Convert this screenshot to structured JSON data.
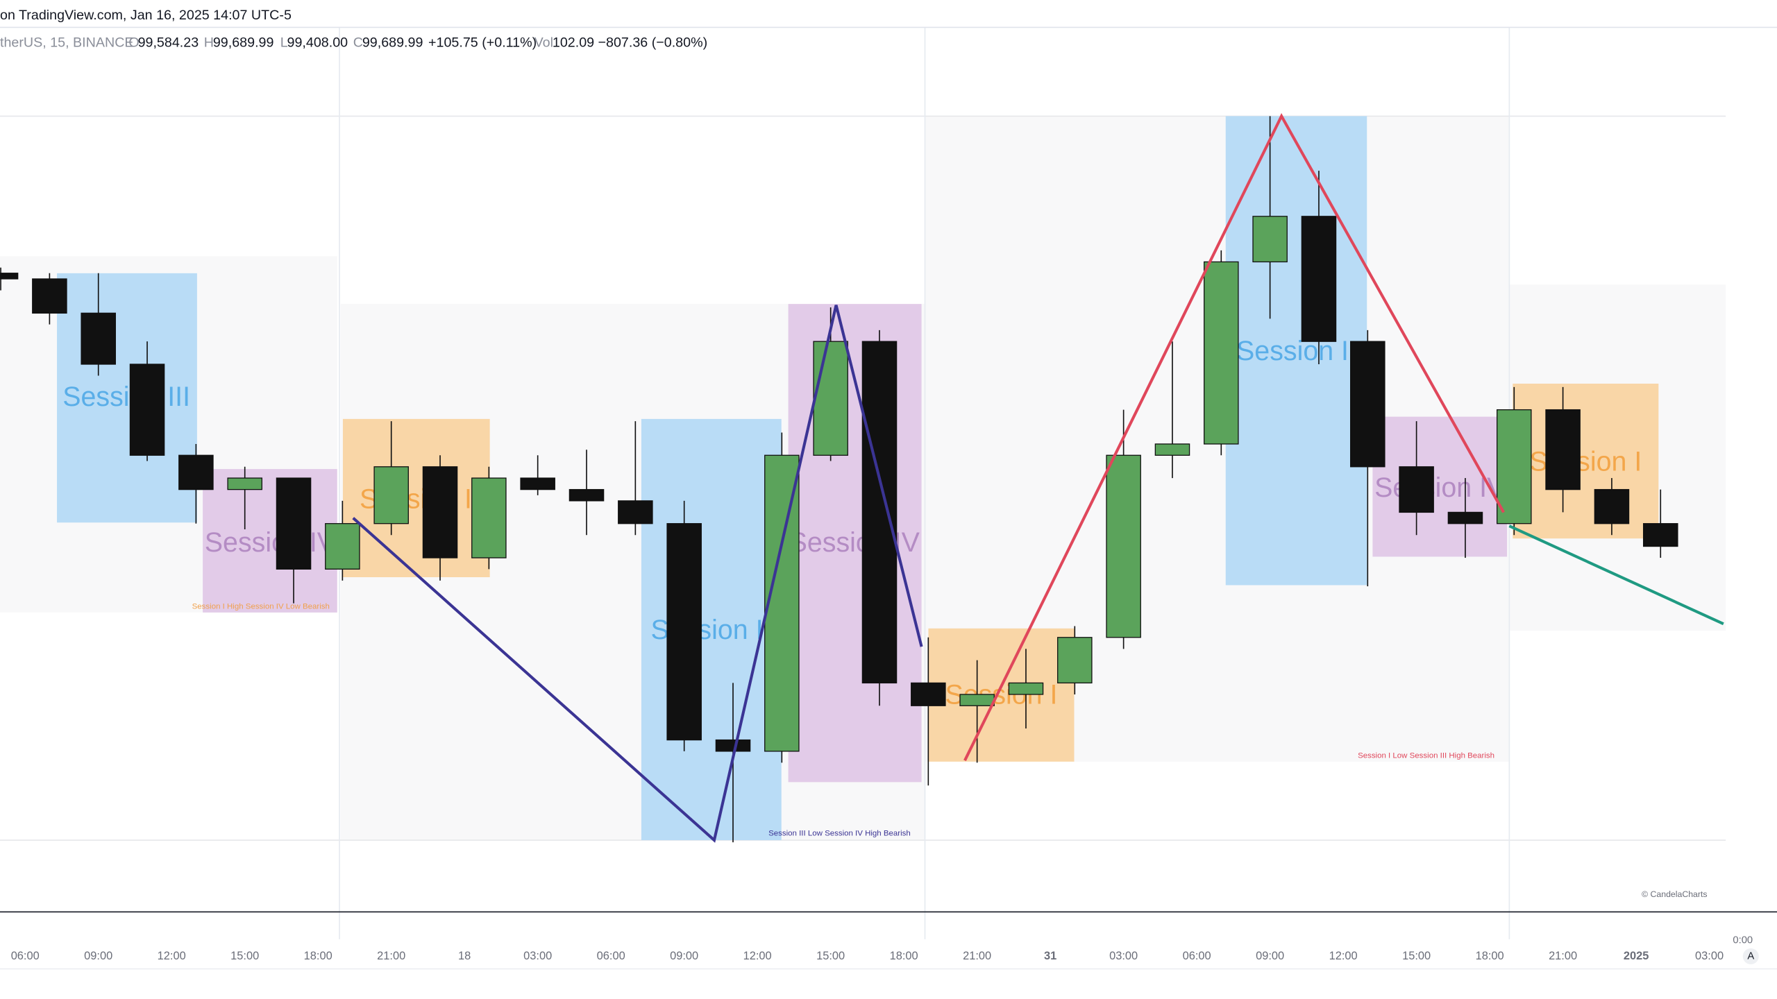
{
  "header": {
    "source": "on TradingView.com, Jan 16, 2025 14:07 UTC-5",
    "symbol": "therUS, 15, BINANCE",
    "ohlc": [
      {
        "label": "O",
        "value": "99,584.23"
      },
      {
        "label": "H",
        "value": "99,689.99"
      },
      {
        "label": "L",
        "value": "99,408.00"
      },
      {
        "label": "C",
        "value": "99,689.99"
      }
    ],
    "change": "+105.75 (+0.11%)",
    "volume_label": "Vol",
    "volume": "102.09",
    "volume_change": "−807.36 (−0.80%)"
  },
  "chart_data": {
    "type": "candlestick",
    "up_color": "#5ba35b",
    "down_color": "#111111",
    "x": [
      -1,
      1,
      3,
      5,
      7,
      9,
      11,
      13,
      15,
      17,
      19,
      21,
      23,
      25,
      27,
      29,
      31,
      33,
      35,
      37,
      39,
      41,
      43,
      45,
      47,
      49,
      51,
      53,
      55,
      57,
      59,
      61,
      63,
      65,
      67
    ],
    "open": [
      94662,
      94628,
      94425,
      94122,
      93582,
      93379,
      93447,
      92907,
      93177,
      93514,
      92974,
      93447,
      93379,
      93312,
      93177,
      91894,
      91827,
      93582,
      94257,
      92232,
      92097,
      92164,
      92232,
      92502,
      93582,
      93649,
      94729,
      94999,
      94257,
      93514,
      93244,
      93177,
      93852,
      93379,
      93177
    ],
    "high": [
      94695,
      94662,
      94662,
      94257,
      93649,
      93514,
      93447,
      93312,
      93784,
      93582,
      93514,
      93582,
      93615,
      93784,
      93312,
      92232,
      93717,
      94459,
      94324,
      92502,
      92367,
      92434,
      92569,
      93852,
      94257,
      94797,
      95593,
      95269,
      94324,
      93784,
      93447,
      93987,
      93987,
      93447,
      93379
    ],
    "low": [
      94560,
      94358,
      94054,
      93548,
      93177,
      93143,
      92704,
      92839,
      93109,
      92839,
      92907,
      93345,
      93109,
      93109,
      91827,
      91287,
      91759,
      93548,
      92097,
      91624,
      91759,
      91962,
      92164,
      92434,
      93447,
      93582,
      94392,
      94122,
      92805,
      93109,
      92974,
      93109,
      93244,
      93109,
      92974
    ],
    "close": [
      94628,
      94425,
      94122,
      93582,
      93379,
      93447,
      92907,
      93177,
      93514,
      92974,
      93447,
      93379,
      93312,
      93177,
      91894,
      91827,
      93582,
      94257,
      92232,
      92097,
      92164,
      92232,
      92502,
      93582,
      93649,
      94729,
      94999,
      94257,
      93514,
      93244,
      93177,
      93852,
      93379,
      93177,
      93042
    ],
    "xlim": [
      -1.03,
      69.67
    ],
    "ylim": [
      90881,
      96113
    ],
    "xticks": [
      {
        "value": 0,
        "label": "06:00"
      },
      {
        "value": 3,
        "label": "09:00"
      },
      {
        "value": 6,
        "label": "12:00"
      },
      {
        "value": 9,
        "label": "15:00"
      },
      {
        "value": 12,
        "label": "18:00"
      },
      {
        "value": 15,
        "label": "21:00"
      },
      18,
      {
        "value": 21,
        "label": "03:00"
      },
      {
        "value": 24,
        "label": "06:00"
      },
      {
        "value": 27,
        "label": "09:00"
      },
      {
        "value": 30,
        "label": "12:00"
      },
      {
        "value": 33,
        "label": "15:00"
      },
      {
        "value": 36,
        "label": "18:00"
      },
      {
        "value": 39,
        "label": "21:00"
      },
      {
        "value": 42,
        "label": "31"
      },
      {
        "value": 45,
        "label": "03:00"
      },
      {
        "value": 48,
        "label": "06:00"
      },
      {
        "value": 51,
        "label": "09:00"
      },
      {
        "value": 54,
        "label": "12:00"
      },
      {
        "value": 57,
        "label": "15:00"
      },
      {
        "value": 60,
        "label": "18:00"
      },
      {
        "value": 63,
        "label": "21:00"
      },
      {
        "value": 66,
        "label": "2025"
      },
      {
        "value": 69,
        "label": "03:00"
      }
    ]
  },
  "annotations": {
    "sessions": [
      "Session III",
      "Session IV",
      "Session I",
      "Session II",
      "Session IV",
      "Session I",
      "Session II",
      "Session IV",
      "Session I"
    ],
    "labels": [
      "Session I High Session IV Low Bearish",
      "Session III Low Session IV High Bearish",
      "Session I Low Session III High Bearish"
    ]
  },
  "footer": {
    "watermark": "© CandelaCharts",
    "scale_label": "0:00",
    "auto": "A"
  }
}
